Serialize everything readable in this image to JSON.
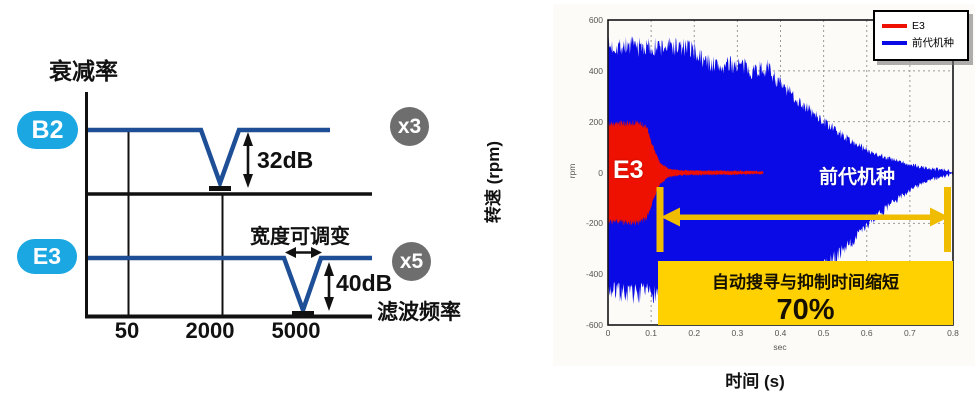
{
  "left_diagram": {
    "y_axis_label": "衰减率",
    "x_axis_label": "滤波频率",
    "x_ticks": [
      "50",
      "2000",
      "5000"
    ],
    "b2": {
      "badge": "B2",
      "depth_label": "32dB",
      "multiplier_label": "x3"
    },
    "e3": {
      "badge": "E3",
      "depth_label": "40dB",
      "multiplier_label": "x5",
      "width_note": "宽度可调变"
    },
    "colors": {
      "badge_cyan": "#1BA7E2",
      "line_navy": "#1D4E96",
      "badge_gray": "#6E6E6E"
    }
  },
  "right_chart": {
    "outer_y_label": "转速 (rpm)",
    "outer_x_label": "时间 (s)",
    "inner_y_unit": "rpm",
    "inner_x_unit": "sec",
    "colors": {
      "e3_red": "#EE1000",
      "prev_blue": "#0A0AE6",
      "highlight_yellow": "#FFD100",
      "arrow_yellow": "#F0BC00"
    }
  },
  "chart_data": [
    {
      "type": "line",
      "xlabel": "滤波频率",
      "ylabel": "衰减率",
      "x_ticks": [
        50,
        2000,
        5000
      ],
      "series": [
        {
          "name": "B2",
          "notch_freq_hz": 2000,
          "notch_depth_db": 32,
          "filter_count_label": "x3"
        },
        {
          "name": "E3",
          "notch_freq_hz": 5000,
          "notch_depth_db": 40,
          "filter_count_label": "x5",
          "width_adjustable_note": "宽度可调变"
        }
      ]
    },
    {
      "type": "area",
      "xlabel": "时间 (s)",
      "ylabel": "转速 (rpm)",
      "inner_xlabel": "sec",
      "inner_ylabel": "rpm",
      "xlim": [
        0,
        0.8
      ],
      "ylim": [
        -600,
        600
      ],
      "x_ticks": [
        0,
        0.1,
        0.2,
        0.3,
        0.4,
        0.5,
        0.6,
        0.7,
        0.8
      ],
      "y_ticks": [
        600,
        400,
        200,
        0,
        -200,
        -400,
        -600
      ],
      "grid": "dashed",
      "legend_position": "top-right",
      "series": [
        {
          "name": "E3",
          "color": "#EE1000",
          "envelope_upper": [
            [
              0,
              190
            ],
            [
              0.07,
              196
            ],
            [
              0.09,
              176
            ],
            [
              0.105,
              100
            ],
            [
              0.12,
              40
            ],
            [
              0.14,
              15
            ],
            [
              0.17,
              8
            ],
            [
              0.36,
              5
            ]
          ],
          "envelope_lower": [
            [
              0,
              -193
            ],
            [
              0.07,
              -198
            ],
            [
              0.09,
              -180
            ],
            [
              0.105,
              -110
            ],
            [
              0.12,
              -45
            ],
            [
              0.14,
              -18
            ],
            [
              0.17,
              -10
            ],
            [
              0.36,
              -6
            ]
          ]
        },
        {
          "name": "前代机种",
          "color": "#0A0AE6",
          "envelope_upper": [
            [
              0,
              494
            ],
            [
              0.04,
              500
            ],
            [
              0.1,
              490
            ],
            [
              0.15,
              497
            ],
            [
              0.2,
              483
            ],
            [
              0.22,
              443
            ],
            [
              0.26,
              415
            ],
            [
              0.3,
              428
            ],
            [
              0.33,
              403
            ],
            [
              0.37,
              412
            ],
            [
              0.4,
              345
            ],
            [
              0.44,
              286
            ],
            [
              0.48,
              226
            ],
            [
              0.52,
              176
            ],
            [
              0.56,
              128
            ],
            [
              0.6,
              89
            ],
            [
              0.65,
              56
            ],
            [
              0.7,
              30
            ],
            [
              0.75,
              14
            ],
            [
              0.8,
              6
            ]
          ],
          "envelope_lower": [
            [
              0,
              -463
            ],
            [
              0.05,
              -478
            ],
            [
              0.15,
              -470
            ],
            [
              0.3,
              -455
            ],
            [
              0.42,
              -444
            ],
            [
              0.46,
              -415
            ],
            [
              0.5,
              -376
            ],
            [
              0.54,
              -313
            ],
            [
              0.58,
              -246
            ],
            [
              0.62,
              -179
            ],
            [
              0.66,
              -120
            ],
            [
              0.7,
              -69
            ],
            [
              0.74,
              -33
            ],
            [
              0.8,
              -6
            ]
          ]
        }
      ],
      "annotation": {
        "span_from_s": 0.11,
        "span_to_s": 0.79,
        "label": "自动搜寻与抑制时间缩短",
        "value": "70%"
      }
    }
  ]
}
